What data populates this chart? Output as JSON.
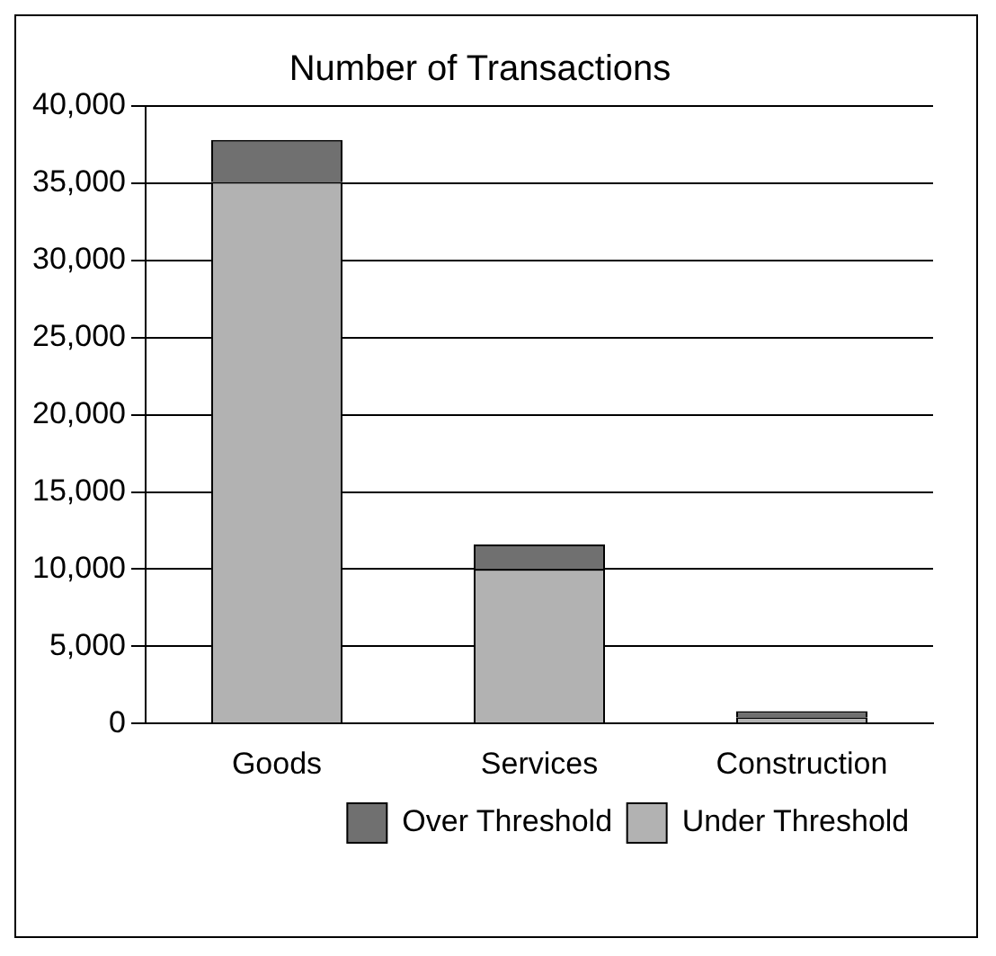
{
  "chart_data": {
    "type": "bar",
    "title": "Number of Transactions",
    "categories": [
      "Goods",
      "Services",
      "Construction"
    ],
    "stacked": true,
    "series": [
      {
        "name": "Under Threshold",
        "color": "#b2b2b2",
        "values": [
          35100,
          10000,
          400
        ]
      },
      {
        "name": "Over Threshold",
        "color": "#707070",
        "values": [
          2700,
          1600,
          400
        ]
      }
    ],
    "ylim": [
      0,
      40000
    ],
    "yticks": [
      0,
      {
        "value": 5000,
        "label": "5,000"
      },
      {
        "value": 10000,
        "label": "10,000"
      },
      {
        "value": 15000,
        "label": "15,000"
      },
      {
        "value": 20000,
        "label": "20,000"
      },
      {
        "value": 25000,
        "label": "25,000"
      },
      {
        "value": 30000,
        "label": "30,000"
      },
      {
        "value": 35000,
        "label": "35,000"
      },
      {
        "value": 40000,
        "label": "40,000"
      }
    ],
    "grid": "y",
    "legend": "bottom"
  }
}
